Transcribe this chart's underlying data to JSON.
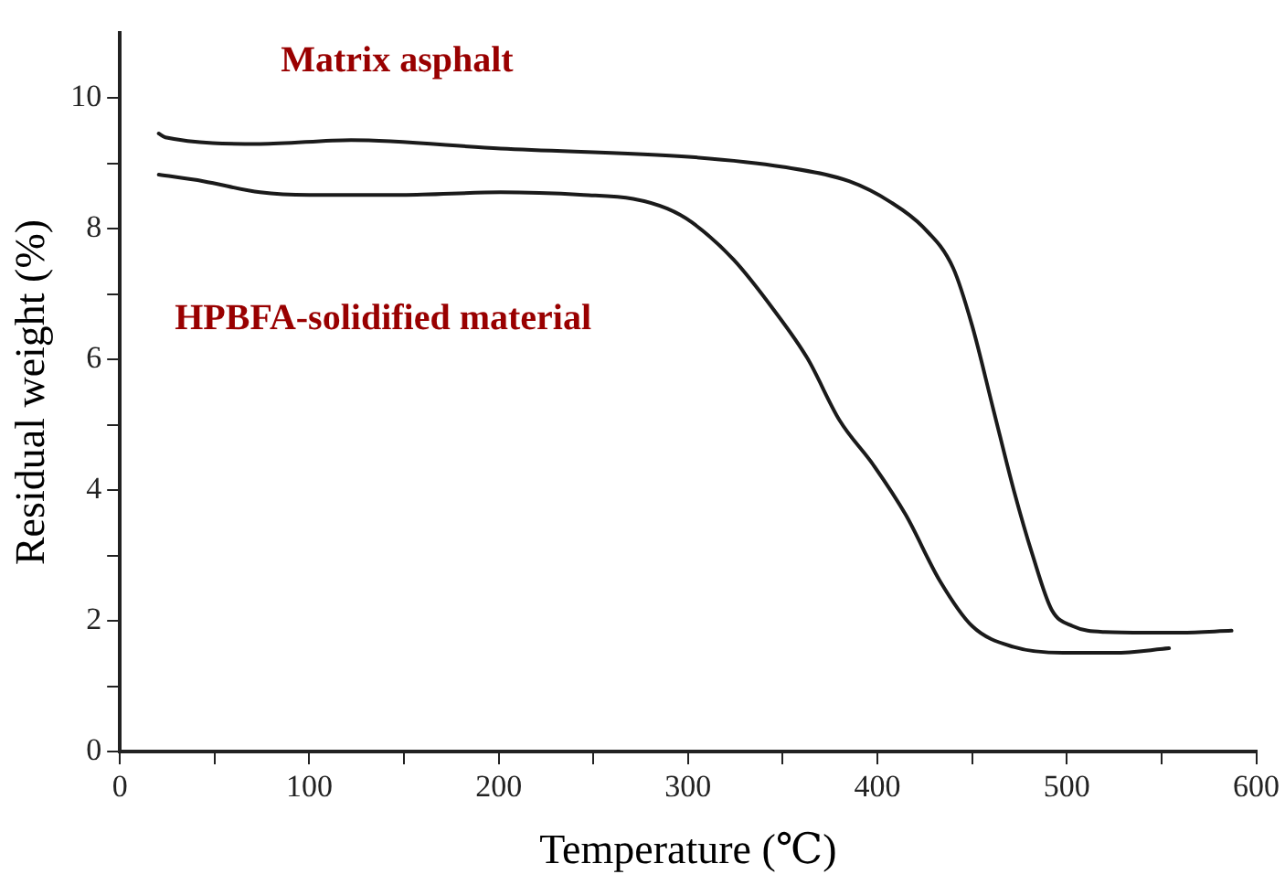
{
  "chart_data": {
    "type": "line",
    "xlabel": "Temperature (℃)",
    "ylabel": "Residual weight (%)",
    "xlim": [
      0,
      600
    ],
    "xticks": [
      0,
      {
        "value": 50,
        "label": null
      },
      100,
      {
        "value": 150,
        "label": null
      },
      200,
      {
        "value": 250,
        "label": null
      },
      300,
      {
        "value": 350,
        "label": null
      },
      400,
      {
        "value": 450,
        "label": null
      },
      500,
      {
        "value": 550,
        "label": null
      },
      600
    ],
    "ylim": [
      0,
      11
    ],
    "yticks": [
      0,
      {
        "value": 1,
        "label": null
      },
      2,
      {
        "value": 3,
        "label": null
      },
      4,
      {
        "value": 5,
        "label": null
      },
      6,
      {
        "value": 7,
        "label": null
      },
      8,
      {
        "value": 9,
        "label": null
      },
      10
    ],
    "grid": false,
    "legend": false,
    "marker": "none",
    "line_style": "solid",
    "series": [
      {
        "name": "Matrix asphalt",
        "color": "#1a1a1a",
        "x": [
          20.5,
          24,
          74,
          122,
          201,
          302,
          350,
          385,
          407,
          424,
          440,
          450,
          461,
          472,
          482,
          492,
          503,
          520,
          542,
          560,
          587
        ],
        "values": [
          9.46,
          9.4,
          9.3,
          9.36,
          9.23,
          9.1,
          8.95,
          8.73,
          8.41,
          8.03,
          7.4,
          6.52,
          5.26,
          4.0,
          3.0,
          2.17,
          1.92,
          1.83,
          1.82,
          1.82,
          1.85
        ]
      },
      {
        "name": "HPBFA-solidified material",
        "color": "#1a1a1a",
        "x": [
          20.5,
          44,
          74,
          100,
          149,
          201,
          245,
          271,
          289,
          302,
          324,
          345,
          363,
          380,
          398,
          415,
          433,
          450,
          472,
          498,
          525,
          554
        ],
        "values": [
          8.83,
          8.73,
          8.56,
          8.52,
          8.52,
          8.56,
          8.52,
          8.46,
          8.31,
          8.1,
          7.53,
          6.77,
          6.02,
          5.07,
          4.38,
          3.62,
          2.61,
          1.92,
          1.6,
          1.51,
          1.51,
          1.58
        ]
      }
    ]
  }
}
